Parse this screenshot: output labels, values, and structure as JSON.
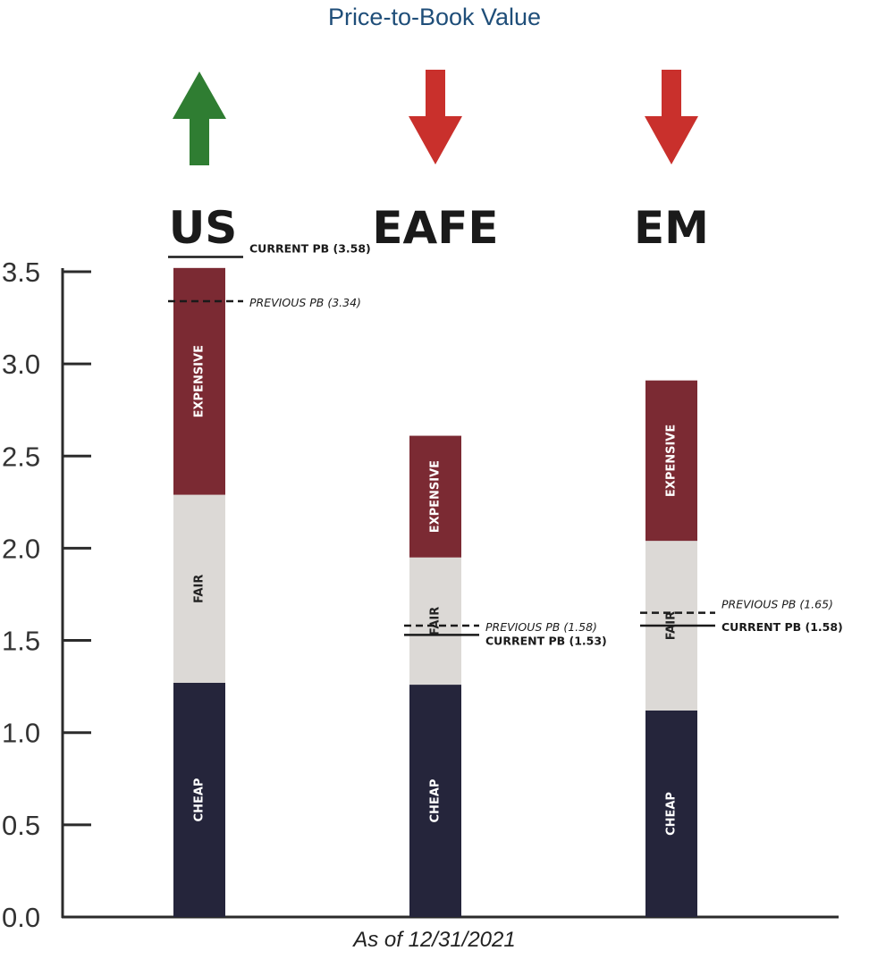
{
  "title": "Price-to-Book Value",
  "footnote": "As of 12/31/2021",
  "chart_data": {
    "type": "bar",
    "title": "Price-to-Book Value",
    "xlabel": "",
    "ylabel": "",
    "ylim": [
      0,
      3.5
    ],
    "yticks": [
      "0.0",
      "0.5",
      "1.0",
      "1.5",
      "2.0",
      "2.5",
      "3.0",
      "3.5"
    ],
    "grid": false,
    "categories": [
      "US",
      "EAFE",
      "EM"
    ],
    "series": [
      {
        "name": "CHEAP",
        "color": "#25253b",
        "values": [
          1.27,
          1.26,
          1.12
        ]
      },
      {
        "name": "FAIR",
        "color": "#dcd9d6",
        "values": [
          1.02,
          0.69,
          0.92
        ]
      },
      {
        "name": "EXPENSIVE",
        "color": "#7b2a33",
        "values": [
          1.23,
          0.66,
          0.87
        ]
      }
    ],
    "arrows": [
      {
        "category": "US",
        "direction": "up",
        "color": "#2f7d32",
        "icon": "up-arrow-icon"
      },
      {
        "category": "EAFE",
        "direction": "down",
        "color": "#c9302c",
        "icon": "down-arrow-icon"
      },
      {
        "category": "EM",
        "direction": "down",
        "color": "#c9302c",
        "icon": "down-arrow-icon"
      }
    ],
    "markers": [
      {
        "category": "US",
        "kind": "current",
        "value": 3.58,
        "label": "CURRENT PB (3.58)"
      },
      {
        "category": "US",
        "kind": "previous",
        "value": 3.34,
        "label": "PREVIOUS PB (3.34)"
      },
      {
        "category": "EAFE",
        "kind": "previous",
        "value": 1.58,
        "label": "PREVIOUS PB (1.58)"
      },
      {
        "category": "EAFE",
        "kind": "current",
        "value": 1.53,
        "label": "CURRENT PB (1.53)"
      },
      {
        "category": "EM",
        "kind": "previous",
        "value": 1.65,
        "label": "PREVIOUS PB (1.65)"
      },
      {
        "category": "EM",
        "kind": "current",
        "value": 1.58,
        "label": "CURRENT PB (1.58)"
      }
    ]
  }
}
